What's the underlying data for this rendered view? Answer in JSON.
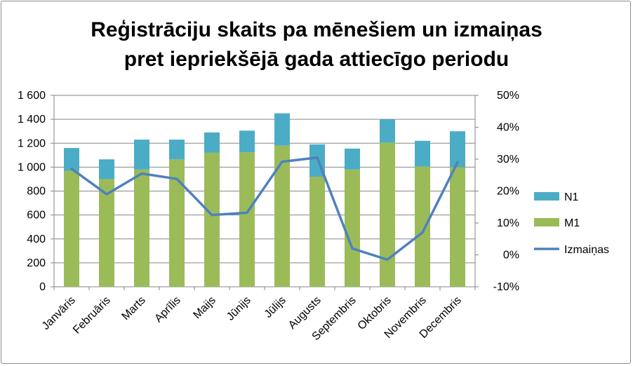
{
  "chart_data": {
    "type": "bar",
    "stacked": true,
    "title_line1": "Reģistrāciju skaits pa mēnešiem un izmaiņas",
    "title_line2": "pret iepriekšējā gada attiecīgo periodu",
    "categories": [
      "Janvāris",
      "Februāris",
      "Marts",
      "Aprīlis",
      "Maijs",
      "Jūnijs",
      "Jūlijs",
      "Augusts",
      "Septembris",
      "Oktobris",
      "Novembris",
      "Decembris"
    ],
    "series": [
      {
        "name": "M1",
        "kind": "bar",
        "color": "#9bbb59",
        "values": [
          970,
          900,
          980,
          1065,
          1120,
          1125,
          1180,
          920,
          980,
          1205,
          1005,
          1000
        ]
      },
      {
        "name": "N1",
        "kind": "bar",
        "color": "#4bacc6",
        "values": [
          190,
          165,
          250,
          165,
          170,
          180,
          270,
          270,
          175,
          195,
          215,
          300
        ]
      },
      {
        "name": "Izmaiņas",
        "kind": "line",
        "axis": "right",
        "color": "#4f81bd",
        "values": [
          0.27,
          0.19,
          0.255,
          0.238,
          0.125,
          0.132,
          0.292,
          0.305,
          0.02,
          -0.015,
          0.07,
          0.29
        ]
      }
    ],
    "y_left": {
      "min": 0,
      "max": 1600,
      "ticks": [
        "0",
        "200",
        "400",
        "600",
        "800",
        "1 000",
        "1 200",
        "1 400",
        "1 600"
      ]
    },
    "y_right": {
      "min": -0.1,
      "max": 0.5,
      "ticks": [
        "-10%",
        "0%",
        "10%",
        "20%",
        "30%",
        "40%",
        "50%"
      ]
    },
    "legend_position": "right",
    "gridlines": true,
    "gridline_color": "#868686"
  }
}
